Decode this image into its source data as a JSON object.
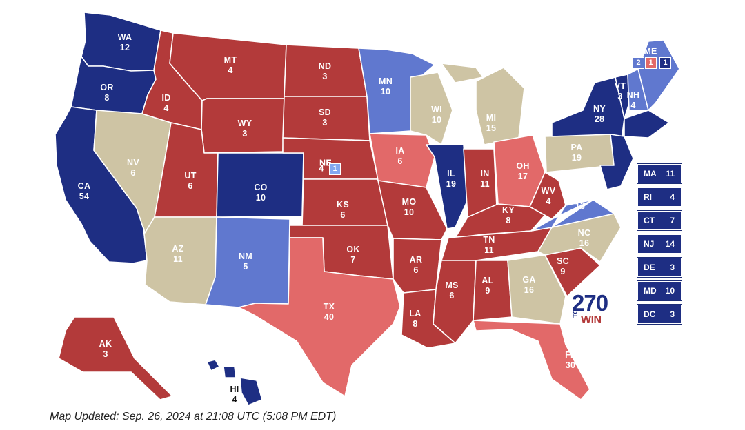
{
  "colors": {
    "safe_dem": "#1e2e83",
    "lean_dem": "#6078cf",
    "tossup": "#cec4a4",
    "safe_rep": "#b33a3a",
    "lean_rep": "#e26969",
    "dem_district": "#83a7f0",
    "rep_district": "#e26969",
    "logo_blue": "#1e2e83",
    "logo_red": "#b33a3a"
  },
  "states": {
    "WA": {
      "abbr": "WA",
      "ev": "12",
      "rating": "safe_dem"
    },
    "OR": {
      "abbr": "OR",
      "ev": "8",
      "rating": "safe_dem"
    },
    "CA": {
      "abbr": "CA",
      "ev": "54",
      "rating": "safe_dem"
    },
    "NV": {
      "abbr": "NV",
      "ev": "6",
      "rating": "tossup"
    },
    "ID": {
      "abbr": "ID",
      "ev": "4",
      "rating": "safe_rep"
    },
    "MT": {
      "abbr": "MT",
      "ev": "4",
      "rating": "safe_rep"
    },
    "WY": {
      "abbr": "WY",
      "ev": "3",
      "rating": "safe_rep"
    },
    "UT": {
      "abbr": "UT",
      "ev": "6",
      "rating": "safe_rep"
    },
    "AZ": {
      "abbr": "AZ",
      "ev": "11",
      "rating": "tossup"
    },
    "CO": {
      "abbr": "CO",
      "ev": "10",
      "rating": "safe_dem"
    },
    "NM": {
      "abbr": "NM",
      "ev": "5",
      "rating": "lean_dem"
    },
    "ND": {
      "abbr": "ND",
      "ev": "3",
      "rating": "safe_rep"
    },
    "SD": {
      "abbr": "SD",
      "ev": "3",
      "rating": "safe_rep"
    },
    "NE": {
      "abbr": "NE",
      "ev": "4",
      "rating": "safe_rep"
    },
    "KS": {
      "abbr": "KS",
      "ev": "6",
      "rating": "safe_rep"
    },
    "OK": {
      "abbr": "OK",
      "ev": "7",
      "rating": "safe_rep"
    },
    "TX": {
      "abbr": "TX",
      "ev": "40",
      "rating": "lean_rep"
    },
    "MN": {
      "abbr": "MN",
      "ev": "10",
      "rating": "lean_dem"
    },
    "IA": {
      "abbr": "IA",
      "ev": "6",
      "rating": "lean_rep"
    },
    "MO": {
      "abbr": "MO",
      "ev": "10",
      "rating": "safe_rep"
    },
    "AR": {
      "abbr": "AR",
      "ev": "6",
      "rating": "safe_rep"
    },
    "LA": {
      "abbr": "LA",
      "ev": "8",
      "rating": "safe_rep"
    },
    "WI": {
      "abbr": "WI",
      "ev": "10",
      "rating": "tossup"
    },
    "IL": {
      "abbr": "IL",
      "ev": "19",
      "rating": "safe_dem"
    },
    "MI": {
      "abbr": "MI",
      "ev": "15",
      "rating": "tossup"
    },
    "IN": {
      "abbr": "IN",
      "ev": "11",
      "rating": "safe_rep"
    },
    "OH": {
      "abbr": "OH",
      "ev": "17",
      "rating": "lean_rep"
    },
    "KY": {
      "abbr": "KY",
      "ev": "8",
      "rating": "safe_rep"
    },
    "TN": {
      "abbr": "TN",
      "ev": "11",
      "rating": "safe_rep"
    },
    "MS": {
      "abbr": "MS",
      "ev": "6",
      "rating": "safe_rep"
    },
    "AL": {
      "abbr": "AL",
      "ev": "9",
      "rating": "safe_rep"
    },
    "GA": {
      "abbr": "GA",
      "ev": "16",
      "rating": "tossup"
    },
    "FL": {
      "abbr": "FL",
      "ev": "30",
      "rating": "lean_rep"
    },
    "SC": {
      "abbr": "SC",
      "ev": "9",
      "rating": "safe_rep"
    },
    "NC": {
      "abbr": "NC",
      "ev": "16",
      "rating": "tossup"
    },
    "VA": {
      "abbr": "VA",
      "ev": "13",
      "rating": "lean_dem"
    },
    "WV": {
      "abbr": "WV",
      "ev": "4",
      "rating": "safe_rep"
    },
    "PA": {
      "abbr": "PA",
      "ev": "19",
      "rating": "tossup"
    },
    "NY": {
      "abbr": "NY",
      "ev": "28",
      "rating": "safe_dem"
    },
    "VT": {
      "abbr": "VT",
      "ev": "3",
      "rating": "safe_dem"
    },
    "NH": {
      "abbr": "NH",
      "ev": "4",
      "rating": "lean_dem"
    },
    "ME": {
      "abbr": "ME",
      "ev": "",
      "rating": "lean_dem"
    },
    "AK": {
      "abbr": "AK",
      "ev": "3",
      "rating": "safe_rep"
    },
    "HI": {
      "abbr": "HI",
      "ev": "4",
      "rating": "safe_dem"
    }
  },
  "splits": {
    "ne_statewide": "4",
    "ne_district": "1",
    "me_statewide": "2",
    "me_cd2": "1",
    "me_cd1": "1"
  },
  "legend": [
    {
      "abbr": "MA",
      "ev": "11",
      "rating": "safe_dem"
    },
    {
      "abbr": "RI",
      "ev": "4",
      "rating": "safe_dem"
    },
    {
      "abbr": "CT",
      "ev": "7",
      "rating": "safe_dem"
    },
    {
      "abbr": "NJ",
      "ev": "14",
      "rating": "safe_dem"
    },
    {
      "abbr": "DE",
      "ev": "3",
      "rating": "safe_dem"
    },
    {
      "abbr": "MD",
      "ev": "10",
      "rating": "safe_dem"
    },
    {
      "abbr": "DC",
      "ev": "3",
      "rating": "safe_dem"
    }
  ],
  "logo": {
    "number": "270",
    "to": "TO",
    "win": "WIN"
  },
  "footer": "Map Updated: Sep. 26, 2024 at 21:08 UTC (5:08 PM EDT)"
}
